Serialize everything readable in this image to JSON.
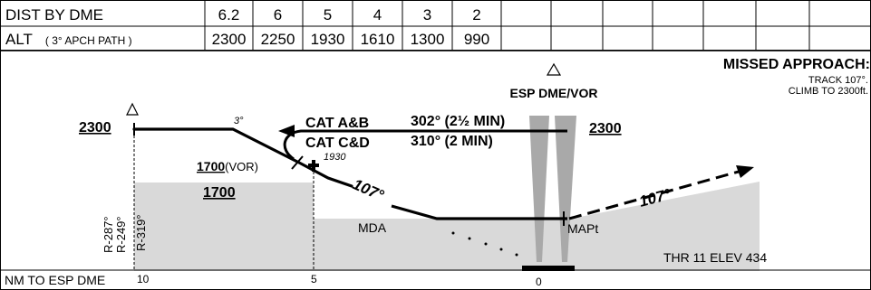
{
  "table": {
    "dist_label": "DIST BY DME",
    "alt_label": "ALT",
    "alt_sub": "( 3° APCH PATH )",
    "distances": [
      "6.2",
      "6",
      "5",
      "4",
      "3",
      "2"
    ],
    "altitudes": [
      "2300",
      "2250",
      "1930",
      "1610",
      "1300",
      "990"
    ]
  },
  "missed_approach": {
    "title": "MISSED APPROACH:",
    "line1": "TRACK 107°.",
    "line2": "CLIMB TO 2300ft."
  },
  "facility": {
    "name": "ESP DME/VOR"
  },
  "profile": {
    "alt_left": "2300",
    "angle": "3°",
    "cat_ab": "CAT A&B",
    "cat_cd": "CAT C&D",
    "course_ab": "302° (2½ MIN)",
    "course_cd": "310°  (2 MIN)",
    "alt_right": "2300",
    "vor_alt": "1700",
    "vor_tag": "(VOR)",
    "fix_alt": "1930",
    "msa": "1700",
    "inbound_track": "107°",
    "missed_track": "107°",
    "mda": "MDA",
    "mapt": "MAPt",
    "thr": "THR 11 ELEV 434",
    "radials": [
      "R-287°",
      "R-249°",
      "R-319°"
    ]
  },
  "scale": {
    "label": "NM TO ESP DME",
    "ticks": [
      "10",
      "5",
      "0"
    ]
  }
}
